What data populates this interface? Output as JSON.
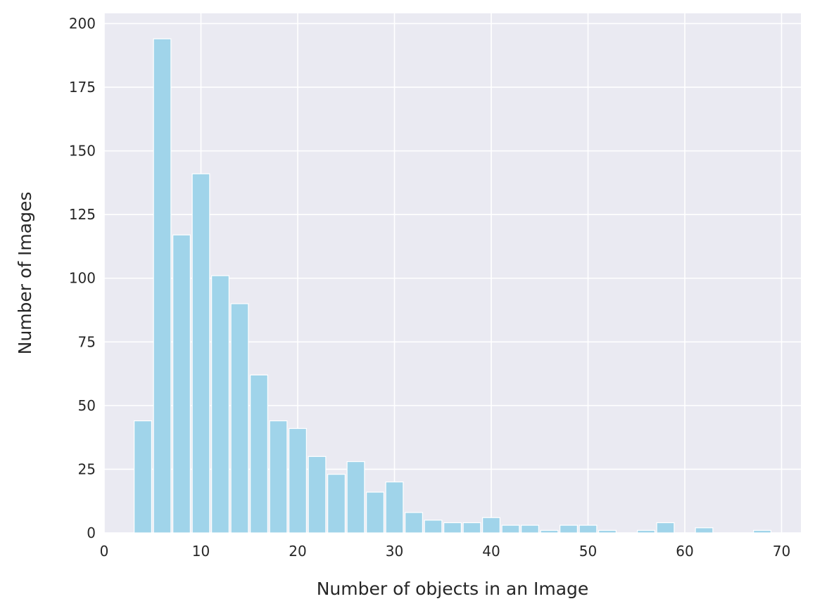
{
  "chart_data": {
    "type": "bar",
    "xlabel": "Number of objects in an Image",
    "ylabel": "Number of Images",
    "xlim": [
      0,
      72
    ],
    "ylim": [
      0,
      204
    ],
    "xticks": [
      0,
      10,
      20,
      30,
      40,
      50,
      60,
      70
    ],
    "yticks": [
      0,
      25,
      50,
      75,
      100,
      125,
      150,
      175,
      200
    ],
    "grid": true,
    "bar_width": 1.8,
    "bar_color": "#a0d4ea",
    "background_color": "#eaeaf2",
    "grid_color": "#ffffff",
    "bars": [
      {
        "x": 4,
        "y": 44
      },
      {
        "x": 6,
        "y": 194
      },
      {
        "x": 8,
        "y": 117
      },
      {
        "x": 10,
        "y": 141
      },
      {
        "x": 12,
        "y": 101
      },
      {
        "x": 14,
        "y": 90
      },
      {
        "x": 16,
        "y": 62
      },
      {
        "x": 18,
        "y": 44
      },
      {
        "x": 20,
        "y": 41
      },
      {
        "x": 22,
        "y": 30
      },
      {
        "x": 24,
        "y": 23
      },
      {
        "x": 26,
        "y": 28
      },
      {
        "x": 28,
        "y": 16
      },
      {
        "x": 30,
        "y": 20
      },
      {
        "x": 32,
        "y": 8
      },
      {
        "x": 34,
        "y": 5
      },
      {
        "x": 36,
        "y": 4
      },
      {
        "x": 38,
        "y": 4
      },
      {
        "x": 40,
        "y": 6
      },
      {
        "x": 42,
        "y": 3
      },
      {
        "x": 44,
        "y": 3
      },
      {
        "x": 46,
        "y": 1
      },
      {
        "x": 48,
        "y": 3
      },
      {
        "x": 50,
        "y": 3
      },
      {
        "x": 52,
        "y": 1
      },
      {
        "x": 56,
        "y": 1
      },
      {
        "x": 58,
        "y": 4
      },
      {
        "x": 62,
        "y": 2
      },
      {
        "x": 68,
        "y": 1
      }
    ]
  }
}
